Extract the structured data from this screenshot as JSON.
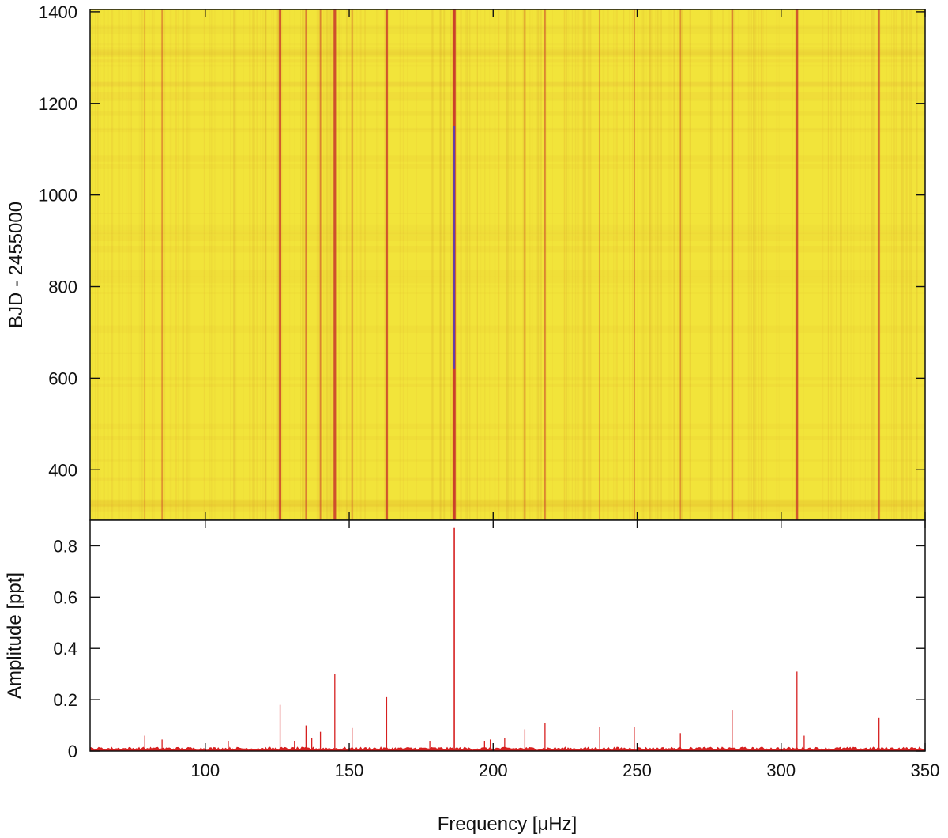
{
  "chart_data": [
    {
      "type": "heatmap",
      "title": "",
      "xlabel": "",
      "ylabel": "BJD - 2455000",
      "xlim": [
        60,
        350
      ],
      "ylim": [
        290,
        1405
      ],
      "x_ticks": [
        100,
        150,
        200,
        250,
        300,
        350
      ],
      "y_ticks": [
        400,
        600,
        800,
        1000,
        1200,
        1400
      ],
      "colors": {
        "background": "#f2e43a",
        "ridge": "#c8322a",
        "peak": "#5a3fb5"
      },
      "ridges": [
        {
          "x": 79,
          "strength": 0.15,
          "y_start": 290,
          "y_end": 1405
        },
        {
          "x": 85,
          "strength": 0.2,
          "y_start": 290,
          "y_end": 1405
        },
        {
          "x": 126,
          "strength": 0.75,
          "y_start": 290,
          "y_end": 1405
        },
        {
          "x": 135,
          "strength": 0.35,
          "y_start": 290,
          "y_end": 1405
        },
        {
          "x": 140,
          "strength": 0.3,
          "y_start": 290,
          "y_end": 1405
        },
        {
          "x": 145,
          "strength": 0.85,
          "y_start": 290,
          "y_end": 1405
        },
        {
          "x": 151,
          "strength": 0.25,
          "y_start": 290,
          "y_end": 1405
        },
        {
          "x": 163,
          "strength": 0.8,
          "y_start": 290,
          "y_end": 1405
        },
        {
          "x": 186.5,
          "strength": 1.0,
          "y_start": 290,
          "y_end": 1405
        },
        {
          "x": 211,
          "strength": 0.25,
          "y_start": 290,
          "y_end": 1405
        },
        {
          "x": 218,
          "strength": 0.3,
          "y_start": 290,
          "y_end": 1405
        },
        {
          "x": 237,
          "strength": 0.2,
          "y_start": 290,
          "y_end": 1405
        },
        {
          "x": 249,
          "strength": 0.2,
          "y_start": 290,
          "y_end": 1405
        },
        {
          "x": 265,
          "strength": 0.15,
          "y_start": 290,
          "y_end": 1405
        },
        {
          "x": 283,
          "strength": 0.4,
          "y_start": 290,
          "y_end": 1405
        },
        {
          "x": 305.5,
          "strength": 0.75,
          "y_start": 290,
          "y_end": 1405
        },
        {
          "x": 334,
          "strength": 0.45,
          "y_start": 290,
          "y_end": 1405
        }
      ]
    },
    {
      "type": "line",
      "title": "",
      "xlabel": "Frequency [μHz]",
      "ylabel": "Amplitude [ppt]",
      "xlim": [
        60,
        350
      ],
      "ylim": [
        0,
        0.9
      ],
      "x_ticks": [
        100,
        150,
        200,
        250,
        300,
        350
      ],
      "y_ticks": [
        0,
        0.2,
        0.4,
        0.6,
        0.8
      ],
      "line_color": "#d62020",
      "noise_level": 0.012,
      "peaks": [
        {
          "x": 79,
          "y": 0.06
        },
        {
          "x": 85,
          "y": 0.045
        },
        {
          "x": 108,
          "y": 0.04
        },
        {
          "x": 126,
          "y": 0.18
        },
        {
          "x": 131,
          "y": 0.04
        },
        {
          "x": 135,
          "y": 0.1
        },
        {
          "x": 137,
          "y": 0.05
        },
        {
          "x": 140,
          "y": 0.075
        },
        {
          "x": 145,
          "y": 0.3
        },
        {
          "x": 151,
          "y": 0.09
        },
        {
          "x": 163,
          "y": 0.21
        },
        {
          "x": 178,
          "y": 0.04
        },
        {
          "x": 186.5,
          "y": 0.87
        },
        {
          "x": 197,
          "y": 0.04
        },
        {
          "x": 199,
          "y": 0.045
        },
        {
          "x": 204,
          "y": 0.05
        },
        {
          "x": 211,
          "y": 0.085
        },
        {
          "x": 218,
          "y": 0.11
        },
        {
          "x": 237,
          "y": 0.095
        },
        {
          "x": 249,
          "y": 0.095
        },
        {
          "x": 265,
          "y": 0.07
        },
        {
          "x": 283,
          "y": 0.16
        },
        {
          "x": 305.5,
          "y": 0.31
        },
        {
          "x": 308,
          "y": 0.06
        },
        {
          "x": 334,
          "y": 0.13
        }
      ]
    }
  ]
}
